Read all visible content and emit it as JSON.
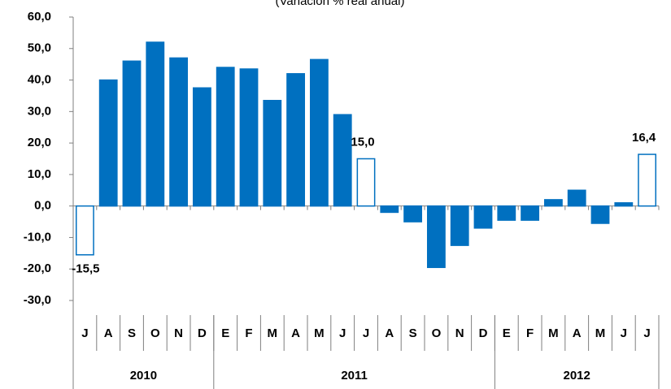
{
  "chart_data": {
    "type": "bar",
    "subtitle": "(Variación % real anual)",
    "categories": [
      "J",
      "A",
      "S",
      "O",
      "N",
      "D",
      "E",
      "F",
      "M",
      "A",
      "M",
      "J",
      "J",
      "A",
      "S",
      "O",
      "N",
      "D",
      "E",
      "F",
      "M",
      "A",
      "M",
      "J",
      "J"
    ],
    "values": [
      -15.5,
      40,
      46,
      52,
      47,
      37.5,
      44,
      43.5,
      33.5,
      42,
      46.5,
      29,
      15.0,
      -2,
      -5,
      -19.5,
      -12.5,
      -7,
      -4.5,
      -4.5,
      2,
      5,
      -5.5,
      1,
      16.4
    ],
    "value_labels": [
      "-15,5",
      null,
      null,
      null,
      null,
      null,
      null,
      null,
      null,
      null,
      null,
      null,
      "15,0",
      null,
      null,
      null,
      null,
      null,
      null,
      null,
      null,
      null,
      null,
      null,
      "16,4"
    ],
    "colors": [
      "#ffffff",
      "#0070c0",
      "#0070c0",
      "#0070c0",
      "#0070c0",
      "#0070c0",
      "#0070c0",
      "#0070c0",
      "#0070c0",
      "#0070c0",
      "#0070c0",
      "#0070c0",
      "#ffffff",
      "#0070c0",
      "#0070c0",
      "#0070c0",
      "#0070c0",
      "#0070c0",
      "#0070c0",
      "#0070c0",
      "#0070c0",
      "#0070c0",
      "#0070c0",
      "#0070c0",
      "#ffffff"
    ],
    "stroke": "#0070c0",
    "groups": [
      {
        "label": "2010",
        "count": 6
      },
      {
        "label": "2011",
        "count": 12
      },
      {
        "label": "2012",
        "count": 7
      }
    ],
    "ylim": [
      -30,
      60
    ],
    "yticks": [
      {
        "value": -30,
        "label": "-30,0"
      },
      {
        "value": -20,
        "label": "-20,0"
      },
      {
        "value": -10,
        "label": "-10,0"
      },
      {
        "value": 0,
        "label": "0,0"
      },
      {
        "value": 10,
        "label": "10,0"
      },
      {
        "value": 20,
        "label": "20,0"
      },
      {
        "value": 30,
        "label": "30,0"
      },
      {
        "value": 40,
        "label": "40,0"
      },
      {
        "value": 50,
        "label": "50,0"
      },
      {
        "value": 60,
        "label": "60,0"
      }
    ]
  }
}
